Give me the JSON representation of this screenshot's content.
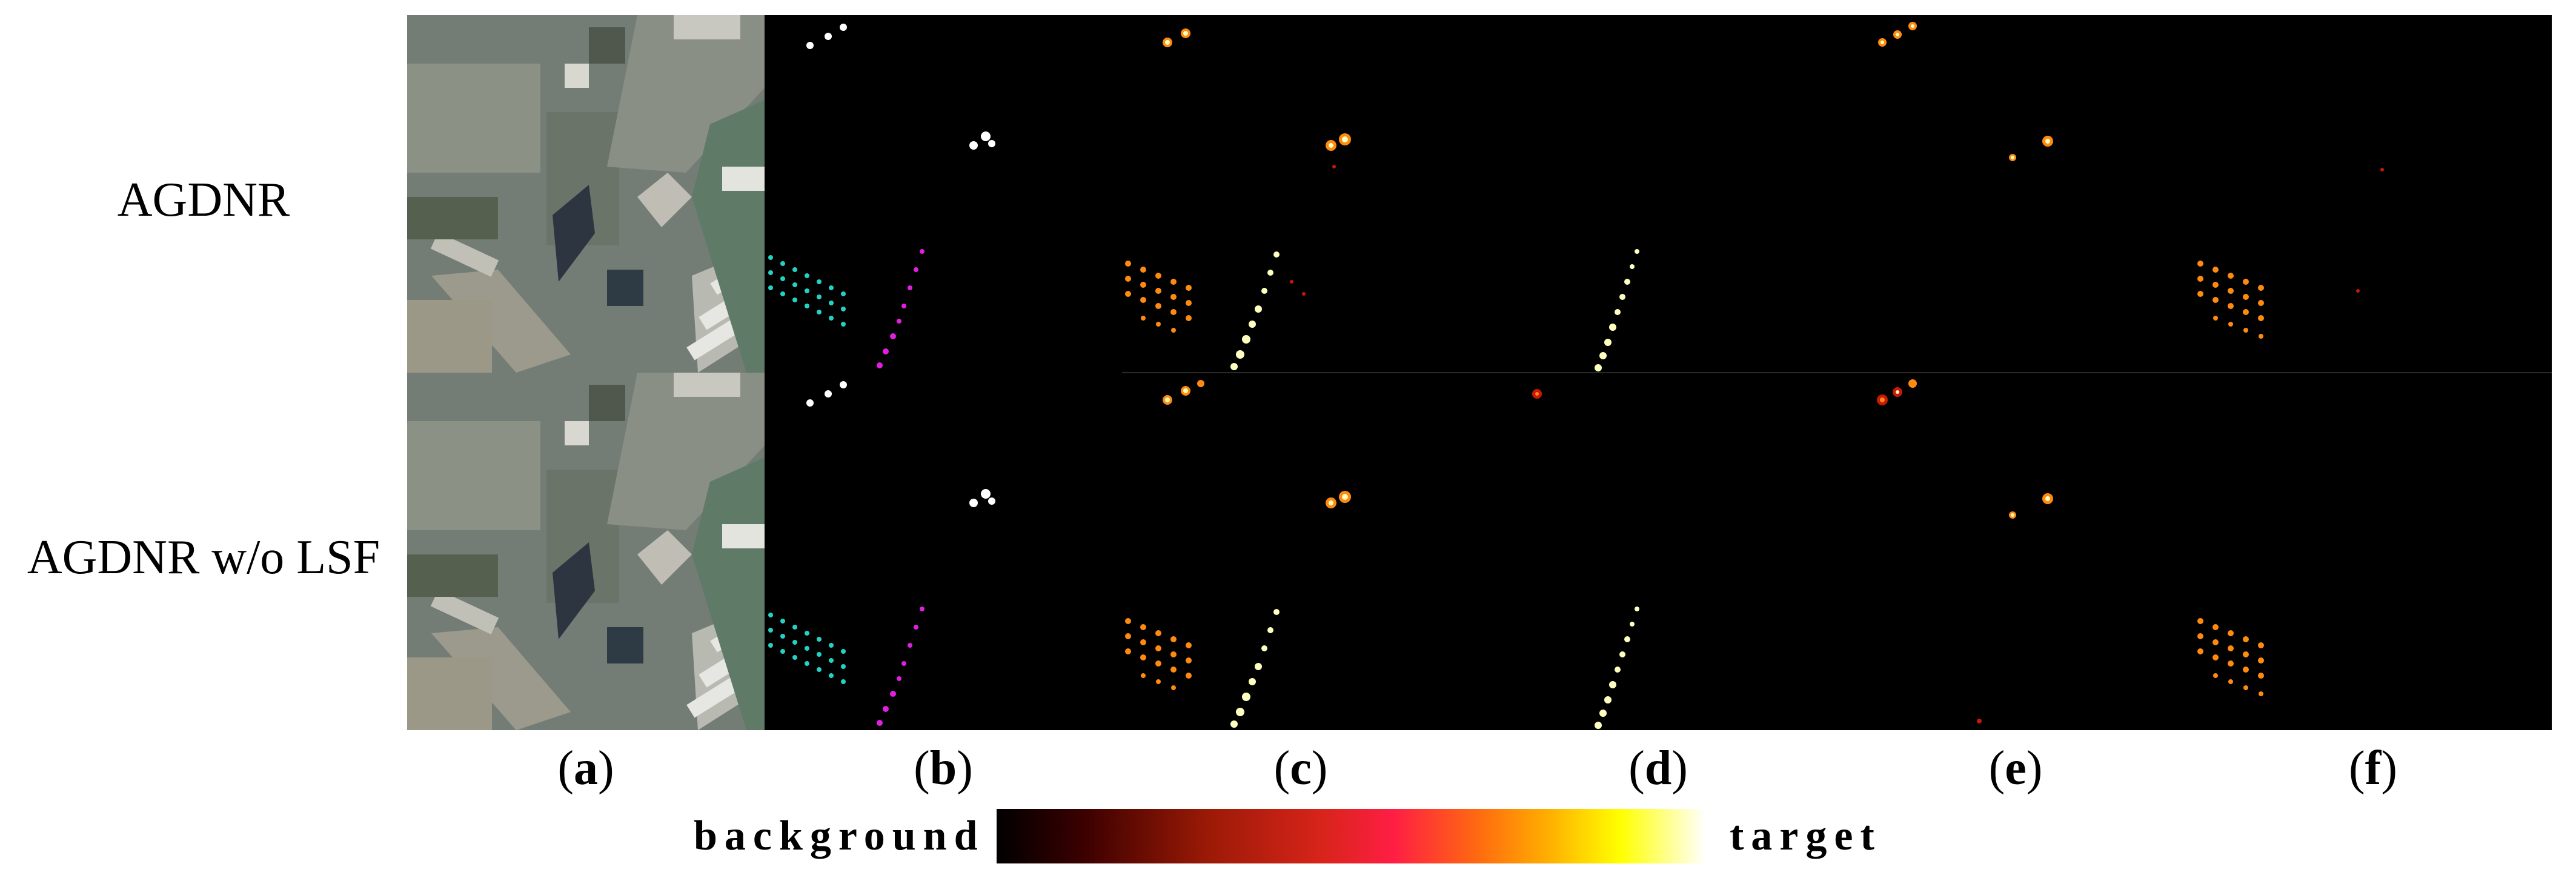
{
  "rows": [
    {
      "label": "AGDNR"
    },
    {
      "label": "AGDNR w/o LSF"
    }
  ],
  "columns": [
    {
      "letter": "a"
    },
    {
      "letter": "b"
    },
    {
      "letter": "c"
    },
    {
      "letter": "d"
    },
    {
      "letter": "e"
    },
    {
      "letter": "f"
    }
  ],
  "colorbar": {
    "left_label": "background",
    "right_label": "target"
  },
  "colors": {
    "ground_truth_vehicles": "#22d3c5",
    "ground_truth_boats": "#e020e0",
    "heat_hot": "#ffffc0",
    "heat_warm": "#ff8a10",
    "heat_cool": "#c81808"
  }
}
